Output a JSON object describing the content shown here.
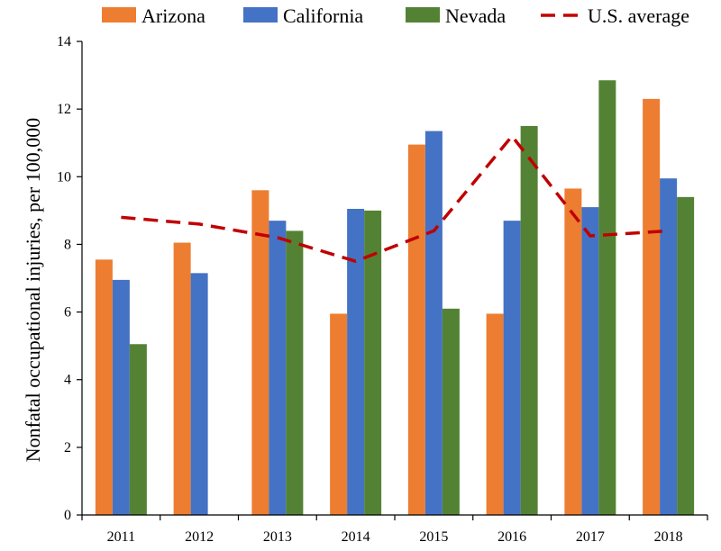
{
  "chart_data": {
    "type": "bar",
    "title": "",
    "xlabel": "",
    "ylabel": "Nonfatal occupational injuries, per 100,000",
    "ylim": [
      0,
      14
    ],
    "yticks": [
      0,
      2,
      4,
      6,
      8,
      10,
      12,
      14
    ],
    "grid": false,
    "legend_position": "top",
    "categories": [
      "2011",
      "2012",
      "2013",
      "2014",
      "2015",
      "2016",
      "2017",
      "2018"
    ],
    "series": [
      {
        "name": "Arizona",
        "type": "bar",
        "color": "#ED7D31",
        "values": [
          7.55,
          8.05,
          9.6,
          5.95,
          10.95,
          5.95,
          9.65,
          12.3
        ]
      },
      {
        "name": "California",
        "type": "bar",
        "color": "#4472C4",
        "values": [
          6.95,
          7.15,
          8.7,
          9.05,
          11.35,
          8.7,
          9.1,
          9.95
        ]
      },
      {
        "name": "Nevada",
        "type": "bar",
        "color": "#548235",
        "values": [
          5.05,
          null,
          8.4,
          9.0,
          6.1,
          11.5,
          12.85,
          9.4
        ]
      },
      {
        "name": "U.S. average",
        "type": "line",
        "style": "dashed",
        "color": "#C00000",
        "values": [
          8.8,
          8.6,
          8.2,
          7.5,
          8.4,
          11.2,
          8.25,
          8.4
        ]
      }
    ]
  }
}
